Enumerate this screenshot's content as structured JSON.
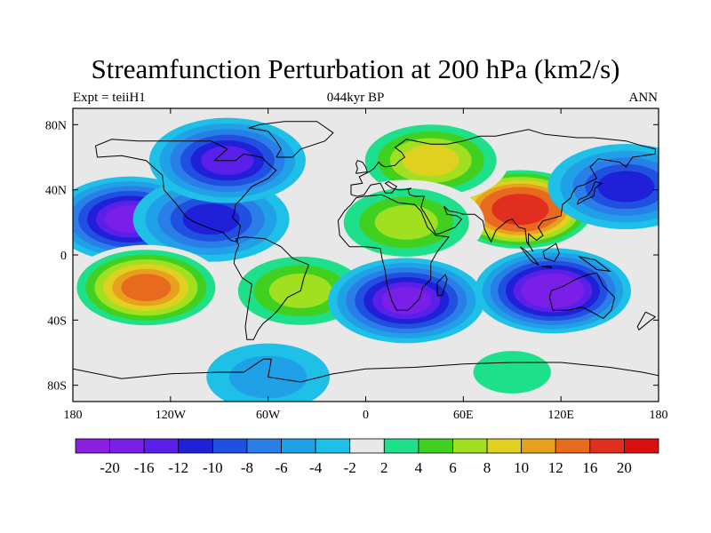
{
  "chart_data": {
    "type": "heatmap",
    "title": "Streamfunction Perturbation at 200 hPa (km2/s)",
    "left_label": "Expt = teiiH1",
    "center_label": "044kyr BP",
    "right_label": "ANN",
    "x_ticks": [
      "180",
      "120W",
      "60W",
      "0",
      "60E",
      "120E",
      "180"
    ],
    "y_ticks": [
      "80N",
      "40N",
      "0",
      "40S",
      "80S"
    ],
    "xlim": [
      -180,
      180
    ],
    "ylim": [
      -90,
      90
    ],
    "colorbar_levels": [
      "-20",
      "-16",
      "-12",
      "-10",
      "-8",
      "-6",
      "-4",
      "-2",
      "2",
      "4",
      "6",
      "8",
      "10",
      "12",
      "16",
      "20"
    ],
    "colorbar_colors": [
      "#8a1fe0",
      "#7a1fe8",
      "#5a1fe8",
      "#2020d8",
      "#1f50e0",
      "#2a7ee8",
      "#20a0e6",
      "#1fc0e8",
      "#e8e8e8",
      "#1fe08a",
      "#40d020",
      "#a0e020",
      "#e0d020",
      "#e8a01f",
      "#e86a1f",
      "#e02e1f",
      "#d81010"
    ],
    "features": [
      {
        "name": "north-pacific-low",
        "lon": -145,
        "lat": 22,
        "value": -14
      },
      {
        "name": "central-pacific-low-tongue",
        "lon": -95,
        "lat": 22,
        "value": -10
      },
      {
        "name": "canada-low",
        "lon": -85,
        "lat": 58,
        "value": -12
      },
      {
        "name": "south-pacific-high",
        "lon": -135,
        "lat": -20,
        "value": 14
      },
      {
        "name": "south-america-high",
        "lon": -40,
        "lat": -22,
        "value": 8
      },
      {
        "name": "eurasia-high",
        "lon": 95,
        "lat": 28,
        "value": 20
      },
      {
        "name": "europe-high",
        "lon": 40,
        "lat": 58,
        "value": 10
      },
      {
        "name": "arabia-high",
        "lon": 25,
        "lat": 20,
        "value": 8
      },
      {
        "name": "south-africa-low",
        "lon": 25,
        "lat": -28,
        "value": -14
      },
      {
        "name": "australia-low",
        "lon": 115,
        "lat": -22,
        "value": -16
      },
      {
        "name": "west-pacific-low",
        "lon": 160,
        "lat": 42,
        "value": -10
      },
      {
        "name": "southern-ocean-low",
        "lon": -60,
        "lat": -75,
        "value": -4
      },
      {
        "name": "southern-ocean-high",
        "lon": 90,
        "lat": -72,
        "value": 4
      }
    ]
  }
}
